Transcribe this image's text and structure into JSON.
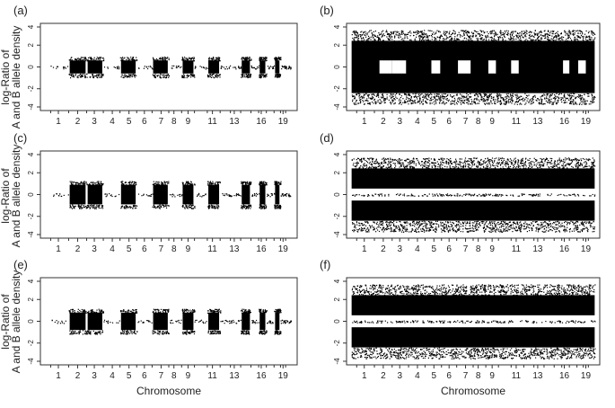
{
  "figure": {
    "ylabel_line1": "log-Ratio of",
    "ylabel_line2": "A and B allele density",
    "xlabel": "Chromosome"
  },
  "chart_data": [
    {
      "type": "scatter",
      "panel": "(a)",
      "pattern": "centered",
      "amp": 0.6,
      "ylim": [
        -4,
        4
      ],
      "yticks": [
        "-4",
        "-2",
        "0",
        "2",
        "4"
      ],
      "xticks": [
        "1",
        "2",
        "3",
        "4",
        "5",
        "6",
        "7",
        "8",
        "9",
        "11",
        "13",
        "16",
        "19"
      ]
    },
    {
      "type": "scatter",
      "panel": "(b)",
      "pattern": "full_with_gaps",
      "amp": 3.2,
      "ylim": [
        -4,
        4
      ],
      "yticks": [
        "-4",
        "-2",
        "0",
        "2",
        "4"
      ],
      "xticks": [
        "1",
        "2",
        "3",
        "4",
        "5",
        "6",
        "7",
        "8",
        "9",
        "11",
        "13",
        "16",
        "19"
      ]
    },
    {
      "type": "scatter",
      "panel": "(c)",
      "pattern": "centered",
      "amp": 0.9,
      "ylim": [
        -4,
        4
      ],
      "yticks": [
        "-4",
        "-2",
        "0",
        "2",
        "4"
      ],
      "xticks": [
        "1",
        "2",
        "3",
        "4",
        "5",
        "6",
        "7",
        "8",
        "9",
        "11",
        "13",
        "16",
        "19"
      ]
    },
    {
      "type": "scatter",
      "panel": "(d)",
      "pattern": "split_bands",
      "amp": 3.2,
      "ylim": [
        -4,
        4
      ],
      "yticks": [
        "-4",
        "-2",
        "0",
        "2",
        "4"
      ],
      "xticks": [
        "1",
        "2",
        "3",
        "4",
        "5",
        "6",
        "7",
        "8",
        "9",
        "11",
        "13",
        "16",
        "19"
      ]
    },
    {
      "type": "scatter",
      "panel": "(e)",
      "pattern": "centered",
      "amp": 0.8,
      "ylim": [
        -4,
        4
      ],
      "yticks": [
        "-4",
        "-2",
        "0",
        "2",
        "4"
      ],
      "xticks": [
        "1",
        "2",
        "3",
        "4",
        "5",
        "6",
        "7",
        "8",
        "9",
        "11",
        "13",
        "16",
        "19"
      ]
    },
    {
      "type": "scatter",
      "panel": "(f)",
      "pattern": "split_bands",
      "amp": 3.2,
      "ylim": [
        -4,
        4
      ],
      "yticks": [
        "-4",
        "-2",
        "0",
        "2",
        "4"
      ],
      "xticks": [
        "1",
        "2",
        "3",
        "4",
        "5",
        "6",
        "7",
        "8",
        "9",
        "11",
        "13",
        "16",
        "19"
      ]
    }
  ]
}
